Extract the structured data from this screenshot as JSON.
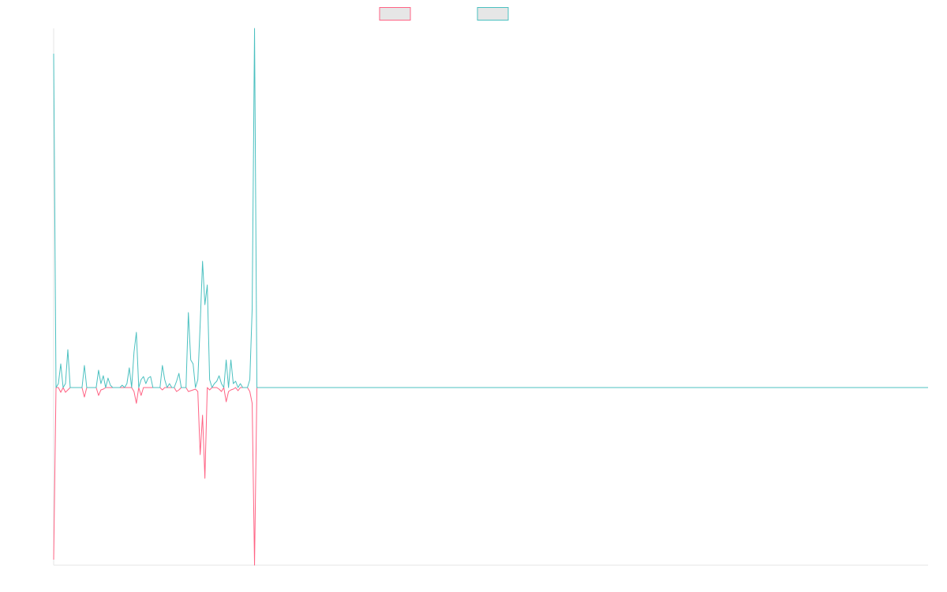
{
  "chart_data": {
    "type": "line",
    "x": [
      0,
      1,
      2,
      3,
      4,
      5,
      6,
      7,
      8,
      9,
      10,
      11,
      12,
      13,
      14,
      15,
      16,
      17,
      18,
      19,
      20,
      21,
      22,
      23,
      24,
      25,
      26,
      27,
      28,
      29,
      30,
      31,
      32,
      33,
      34,
      35,
      36,
      37,
      38,
      39,
      40,
      41,
      42,
      43,
      44,
      45,
      46,
      47,
      48,
      49,
      50,
      51,
      52,
      53,
      54,
      55,
      56,
      57,
      58,
      59,
      60,
      61,
      62,
      63,
      64,
      65,
      66,
      67,
      68,
      69,
      70,
      71,
      72,
      73,
      74,
      75,
      76,
      77,
      78,
      79,
      80,
      81,
      82,
      83,
      84,
      85,
      86,
      370
    ],
    "xlim": [
      0,
      370
    ],
    "ylim": [
      -225,
      455
    ],
    "series": [
      {
        "color": "#ff6384",
        "values": [
          -218,
          0,
          0,
          -6,
          0,
          -6,
          -3,
          0,
          0,
          0,
          0,
          0,
          0,
          -12,
          0,
          0,
          0,
          0,
          0,
          -10,
          -3,
          -2,
          0,
          0,
          0,
          0,
          0,
          0,
          0,
          0,
          0,
          0,
          0,
          0,
          -5,
          -20,
          0,
          -10,
          0,
          0,
          0,
          0,
          0,
          0,
          0,
          0,
          -3,
          0,
          0,
          0,
          0,
          0,
          -5,
          -3,
          0,
          0,
          0,
          -5,
          -4,
          -3,
          -2,
          -5,
          -85,
          -35,
          -115,
          0,
          -3,
          0,
          0,
          0,
          -2,
          -5,
          0,
          -18,
          -5,
          -3,
          -2,
          0,
          -4,
          0,
          0,
          0,
          0,
          -5,
          -20,
          -225,
          0,
          0
        ]
      },
      {
        "color": "#4bc0c0",
        "values": [
          423,
          0,
          5,
          30,
          0,
          5,
          48,
          0,
          0,
          0,
          0,
          0,
          0,
          28,
          0,
          0,
          0,
          0,
          0,
          22,
          5,
          15,
          0,
          12,
          3,
          0,
          0,
          0,
          0,
          3,
          0,
          5,
          25,
          0,
          45,
          70,
          0,
          10,
          14,
          5,
          12,
          14,
          0,
          0,
          0,
          0,
          28,
          10,
          0,
          5,
          0,
          0,
          8,
          18,
          0,
          0,
          0,
          95,
          35,
          30,
          0,
          10,
          80,
          160,
          105,
          130,
          10,
          0,
          5,
          8,
          15,
          5,
          0,
          35,
          0,
          35,
          5,
          8,
          0,
          5,
          0,
          0,
          0,
          10,
          100,
          455,
          0,
          0
        ]
      }
    ]
  }
}
